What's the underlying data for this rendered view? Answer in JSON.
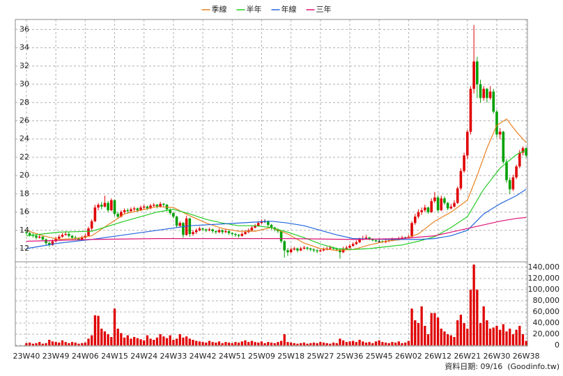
{
  "chart_data": {
    "type": "candlestick",
    "legend_position": "top",
    "grid": true,
    "xlim": [
      -3.4,
      153.4
    ],
    "xticks": [
      {
        "value": 0,
        "label": "23W40"
      },
      {
        "value": 9,
        "label": "23W49"
      },
      {
        "value": 18,
        "label": "24W06"
      },
      {
        "value": 27,
        "label": "24W15"
      },
      {
        "value": 36,
        "label": "24W24"
      },
      {
        "value": 45,
        "label": "24W33"
      },
      {
        "value": 54,
        "label": "24W42"
      },
      {
        "value": 63,
        "label": "24W51"
      },
      {
        "value": 72,
        "label": "25W09"
      },
      {
        "value": 81,
        "label": "25W18"
      },
      {
        "value": 90,
        "label": "25W27"
      },
      {
        "value": 99,
        "label": "25W36"
      },
      {
        "value": 108,
        "label": "25W45"
      },
      {
        "value": 117,
        "label": "26W02"
      },
      {
        "value": 126,
        "label": "26W12"
      },
      {
        "value": 135,
        "label": "26W21"
      },
      {
        "value": 144,
        "label": "26W30"
      },
      {
        "value": 153,
        "label": "26W38"
      }
    ],
    "ylim": [
      10.55,
      37.1
    ],
    "yticks": [
      12,
      14,
      16,
      18,
      20,
      22,
      24,
      26,
      28,
      30,
      32,
      34,
      36
    ],
    "up_color": "#e00000",
    "down_color": "#00a000",
    "flat_color": "#000000",
    "candles": [
      [
        13.8,
        14.0,
        13.5,
        13.7
      ],
      [
        13.7,
        13.8,
        13.3,
        13.5
      ],
      [
        13.5,
        13.7,
        13.2,
        13.4
      ],
      [
        13.4,
        13.5,
        13.0,
        13.2
      ],
      [
        13.2,
        13.5,
        13.1,
        13.3
      ],
      [
        13.3,
        13.4,
        12.8,
        13.0
      ],
      [
        13.0,
        13.1,
        12.4,
        12.6
      ],
      [
        12.6,
        12.8,
        12.2,
        12.4
      ],
      [
        12.4,
        13.0,
        12.3,
        12.8
      ],
      [
        12.8,
        13.3,
        12.7,
        13.1
      ],
      [
        13.1,
        13.5,
        13.0,
        13.3
      ],
      [
        13.3,
        13.7,
        13.2,
        13.5
      ],
      [
        13.5,
        13.9,
        13.4,
        13.6
      ],
      [
        13.6,
        13.8,
        13.2,
        13.4
      ],
      [
        13.4,
        13.5,
        13.0,
        13.2
      ],
      [
        13.2,
        13.4,
        12.9,
        13.1
      ],
      [
        13.1,
        13.2,
        12.8,
        13.0
      ],
      [
        13.0,
        13.4,
        12.9,
        13.2
      ],
      [
        13.2,
        13.6,
        13.1,
        13.4
      ],
      [
        13.4,
        14.4,
        13.3,
        14.2
      ],
      [
        14.2,
        15.2,
        14.0,
        15.0
      ],
      [
        15.0,
        16.8,
        14.9,
        16.5
      ],
      [
        16.5,
        17.0,
        16.2,
        16.8
      ],
      [
        16.8,
        17.1,
        16.3,
        16.6
      ],
      [
        16.6,
        17.8,
        16.5,
        17.0
      ],
      [
        17.0,
        17.2,
        16.0,
        16.2
      ],
      [
        16.2,
        17.5,
        16.1,
        17.3
      ],
      [
        17.3,
        17.4,
        15.6,
        15.8
      ],
      [
        15.8,
        16.0,
        15.3,
        15.5
      ],
      [
        15.5,
        16.2,
        15.4,
        16.0
      ],
      [
        16.0,
        16.4,
        15.8,
        16.2
      ],
      [
        16.2,
        16.4,
        15.9,
        16.1
      ],
      [
        16.1,
        16.5,
        16.0,
        16.3
      ],
      [
        16.3,
        16.6,
        16.1,
        16.4
      ],
      [
        16.4,
        16.5,
        16.0,
        16.2
      ],
      [
        16.2,
        16.7,
        16.1,
        16.5
      ],
      [
        16.5,
        16.8,
        16.3,
        16.6
      ],
      [
        16.6,
        16.7,
        16.2,
        16.4
      ],
      [
        16.4,
        16.9,
        16.3,
        16.7
      ],
      [
        16.7,
        17.0,
        16.5,
        16.8
      ],
      [
        16.8,
        16.9,
        16.4,
        16.6
      ],
      [
        16.6,
        17.1,
        16.5,
        16.9
      ],
      [
        16.9,
        17.0,
        16.6,
        16.8
      ],
      [
        16.8,
        16.9,
        16.1,
        16.3
      ],
      [
        16.3,
        16.4,
        15.7,
        15.9
      ],
      [
        15.9,
        16.0,
        15.3,
        15.5
      ],
      [
        15.5,
        15.6,
        14.3,
        14.5
      ],
      [
        14.5,
        15.0,
        14.3,
        14.8
      ],
      [
        14.8,
        14.9,
        13.2,
        13.5
      ],
      [
        13.5,
        15.6,
        13.4,
        15.3
      ],
      [
        15.3,
        15.4,
        13.3,
        13.6
      ],
      [
        13.6,
        14.0,
        13.4,
        13.8
      ],
      [
        13.8,
        14.2,
        13.6,
        14.0
      ],
      [
        14.0,
        14.4,
        13.9,
        14.2
      ],
      [
        14.2,
        14.3,
        13.9,
        14.1
      ],
      [
        14.1,
        14.2,
        13.8,
        14.0
      ],
      [
        14.0,
        14.3,
        13.9,
        14.1
      ],
      [
        14.1,
        14.2,
        13.7,
        13.9
      ],
      [
        13.9,
        14.0,
        13.6,
        13.8
      ],
      [
        13.8,
        14.2,
        13.7,
        14.0
      ],
      [
        14.0,
        14.1,
        13.6,
        13.8
      ],
      [
        13.8,
        14.1,
        13.7,
        13.9
      ],
      [
        13.9,
        14.0,
        13.5,
        13.7
      ],
      [
        13.7,
        13.8,
        13.4,
        13.6
      ],
      [
        13.6,
        13.7,
        13.3,
        13.5
      ],
      [
        13.5,
        13.6,
        13.2,
        13.4
      ],
      [
        13.4,
        13.8,
        13.3,
        13.6
      ],
      [
        13.6,
        14.0,
        13.5,
        13.8
      ],
      [
        13.8,
        14.2,
        13.7,
        14.0
      ],
      [
        14.0,
        14.5,
        13.9,
        14.3
      ],
      [
        14.3,
        14.7,
        14.2,
        14.5
      ],
      [
        14.5,
        15.0,
        14.4,
        14.8
      ],
      [
        14.8,
        15.2,
        14.7,
        15.0
      ],
      [
        15.0,
        15.2,
        14.8,
        15.0
      ],
      [
        15.0,
        15.1,
        14.4,
        14.6
      ],
      [
        14.6,
        14.7,
        14.1,
        14.3
      ],
      [
        14.3,
        14.4,
        13.9,
        14.1
      ],
      [
        14.1,
        14.2,
        13.7,
        13.9
      ],
      [
        13.9,
        14.0,
        12.6,
        12.8
      ],
      [
        12.8,
        12.9,
        11.0,
        11.8
      ],
      [
        11.8,
        12.0,
        11.2,
        11.6
      ],
      [
        11.6,
        12.1,
        11.5,
        11.9
      ],
      [
        11.9,
        12.2,
        11.8,
        12.0
      ],
      [
        12.0,
        12.1,
        11.6,
        11.8
      ],
      [
        11.8,
        12.2,
        11.7,
        12.0
      ],
      [
        12.0,
        12.3,
        11.9,
        12.1
      ],
      [
        12.1,
        12.2,
        11.8,
        12.0
      ],
      [
        12.0,
        12.1,
        11.7,
        11.9
      ],
      [
        11.9,
        12.0,
        11.6,
        11.8
      ],
      [
        11.8,
        11.9,
        11.5,
        11.7
      ],
      [
        11.7,
        12.0,
        11.6,
        11.8
      ],
      [
        11.8,
        12.1,
        11.7,
        11.9
      ],
      [
        11.9,
        12.2,
        11.8,
        12.0
      ],
      [
        12.0,
        12.3,
        11.9,
        12.1
      ],
      [
        12.1,
        12.2,
        11.8,
        12.0
      ],
      [
        12.0,
        12.1,
        11.7,
        11.9
      ],
      [
        11.9,
        12.0,
        10.9,
        11.6
      ],
      [
        11.6,
        12.2,
        11.5,
        12.0
      ],
      [
        12.0,
        12.3,
        11.9,
        12.1
      ],
      [
        12.1,
        12.5,
        12.0,
        12.3
      ],
      [
        12.3,
        12.7,
        12.2,
        12.5
      ],
      [
        12.5,
        12.9,
        12.4,
        12.7
      ],
      [
        12.7,
        13.2,
        12.6,
        13.0
      ],
      [
        13.0,
        13.4,
        12.9,
        13.1
      ],
      [
        13.1,
        13.5,
        13.0,
        13.2
      ],
      [
        13.2,
        13.3,
        12.9,
        13.0
      ],
      [
        13.0,
        13.1,
        12.8,
        12.9
      ],
      [
        12.9,
        13.0,
        12.7,
        12.8
      ],
      [
        12.8,
        13.0,
        12.7,
        12.8
      ],
      [
        12.8,
        12.9,
        12.6,
        12.7
      ],
      [
        12.7,
        13.0,
        12.6,
        12.8
      ],
      [
        12.8,
        13.1,
        12.7,
        12.9
      ],
      [
        12.9,
        13.2,
        12.8,
        13.0
      ],
      [
        13.0,
        13.1,
        12.9,
        13.0
      ],
      [
        13.0,
        13.3,
        12.9,
        13.1
      ],
      [
        13.1,
        13.4,
        13.0,
        13.2
      ],
      [
        13.2,
        13.3,
        13.1,
        13.2
      ],
      [
        13.2,
        13.5,
        13.1,
        13.3
      ],
      [
        13.3,
        15.0,
        13.2,
        14.8
      ],
      [
        14.8,
        15.8,
        14.6,
        15.5
      ],
      [
        15.5,
        16.3,
        15.3,
        16.0
      ],
      [
        16.0,
        16.5,
        15.7,
        16.2
      ],
      [
        16.2,
        16.8,
        16.0,
        16.5
      ],
      [
        16.5,
        16.6,
        15.8,
        16.0
      ],
      [
        16.0,
        17.5,
        15.9,
        17.2
      ],
      [
        17.2,
        18.2,
        17.0,
        17.6
      ],
      [
        17.6,
        17.8,
        16.0,
        16.2
      ],
      [
        16.2,
        17.8,
        16.1,
        17.5
      ],
      [
        17.5,
        17.7,
        16.8,
        17.0
      ],
      [
        17.0,
        17.1,
        16.2,
        16.4
      ],
      [
        16.4,
        16.9,
        16.3,
        16.6
      ],
      [
        16.6,
        17.3,
        16.5,
        17.0
      ],
      [
        17.0,
        18.8,
        16.9,
        18.6
      ],
      [
        18.6,
        20.8,
        18.4,
        20.5
      ],
      [
        20.5,
        22.5,
        20.3,
        22.2
      ],
      [
        22.2,
        25.0,
        21.8,
        24.8
      ],
      [
        24.8,
        29.8,
        24.5,
        29.5
      ],
      [
        29.5,
        36.5,
        29.0,
        32.5
      ],
      [
        32.5,
        33.0,
        28.5,
        30.0
      ],
      [
        30.0,
        30.5,
        28.0,
        28.5
      ],
      [
        28.5,
        29.8,
        28.2,
        29.5
      ],
      [
        29.5,
        29.6,
        28.0,
        28.5
      ],
      [
        28.5,
        29.8,
        28.3,
        29.2
      ],
      [
        29.2,
        29.5,
        26.8,
        27.0
      ],
      [
        27.0,
        27.2,
        24.2,
        24.5
      ],
      [
        24.5,
        25.2,
        24.0,
        24.8
      ],
      [
        24.8,
        24.9,
        21.3,
        21.5
      ],
      [
        21.5,
        21.8,
        19.2,
        19.5
      ],
      [
        19.5,
        19.8,
        18.0,
        18.5
      ],
      [
        18.5,
        20.1,
        18.3,
        19.8
      ],
      [
        19.8,
        21.2,
        19.6,
        21.0
      ],
      [
        21.0,
        22.8,
        20.8,
        22.5
      ],
      [
        22.5,
        23.2,
        22.2,
        23.0
      ],
      [
        23.0,
        23.1,
        22.0,
        22.2
      ]
    ],
    "series": [
      {
        "name": "季線",
        "color": "#e8801e",
        "x": [
          0,
          5,
          10,
          15,
          20,
          25,
          30,
          35,
          40,
          45,
          50,
          55,
          60,
          65,
          70,
          75,
          80,
          85,
          90,
          95,
          100,
          105,
          110,
          115,
          120,
          125,
          130,
          135,
          138,
          141,
          144,
          147,
          150,
          153
        ],
        "values": [
          14.0,
          13.4,
          13.0,
          13.1,
          13.4,
          14.6,
          15.8,
          16.2,
          16.6,
          16.5,
          15.6,
          14.8,
          14.2,
          13.9,
          13.9,
          14.3,
          13.6,
          12.6,
          12.0,
          11.8,
          11.9,
          12.4,
          12.8,
          13.0,
          13.6,
          15.0,
          16.0,
          17.3,
          20.0,
          23.0,
          25.5,
          26.2,
          24.8,
          23.6
        ]
      },
      {
        "name": "半年",
        "color": "#22cc22",
        "x": [
          0,
          10,
          20,
          30,
          40,
          45,
          50,
          55,
          60,
          65,
          70,
          75,
          80,
          85,
          90,
          95,
          100,
          105,
          110,
          115,
          120,
          125,
          130,
          135,
          140,
          145,
          150,
          153
        ],
        "values": [
          13.4,
          13.8,
          13.9,
          15.0,
          16.0,
          16.3,
          15.8,
          15.2,
          14.8,
          14.5,
          14.5,
          14.3,
          13.8,
          13.2,
          12.5,
          12.0,
          11.9,
          12.0,
          12.2,
          12.4,
          12.8,
          13.3,
          14.3,
          15.5,
          18.5,
          20.8,
          22.3,
          22.8
        ]
      },
      {
        "name": "年線",
        "color": "#2266dd",
        "x": [
          0,
          10,
          20,
          30,
          40,
          50,
          60,
          70,
          75,
          80,
          85,
          90,
          95,
          100,
          110,
          120,
          125,
          130,
          135,
          140,
          145,
          150,
          153
        ],
        "values": [
          12.0,
          12.6,
          13.0,
          13.5,
          14.0,
          14.5,
          14.7,
          14.9,
          15.0,
          14.8,
          14.5,
          14.0,
          13.5,
          13.1,
          13.0,
          13.0,
          13.1,
          13.4,
          14.0,
          15.8,
          16.9,
          17.8,
          18.5
        ]
      },
      {
        "name": "三年",
        "color": "#dd1177",
        "x": [
          0,
          20,
          40,
          60,
          80,
          100,
          115,
          125,
          130,
          135,
          140,
          145,
          150,
          153
        ],
        "values": [
          12.8,
          13.0,
          13.1,
          13.1,
          13.1,
          13.0,
          13.1,
          13.4,
          13.8,
          14.2,
          14.6,
          15.0,
          15.3,
          15.4
        ]
      }
    ],
    "volume": {
      "color": "#e00000",
      "ylim": [
        0,
        150000
      ],
      "yticks": [
        0,
        {
          "value": 20000,
          "label": "20,000"
        },
        {
          "value": 40000,
          "label": "40,000"
        },
        {
          "value": 60000,
          "label": "60,000"
        },
        {
          "value": 80000,
          "label": "80,000"
        },
        {
          "value": 100000,
          "label": "100,000"
        },
        {
          "value": 120000,
          "label": "120,000"
        },
        {
          "value": 140000,
          "label": "140,000"
        }
      ],
      "values": [
        4000,
        5000,
        3000,
        4000,
        6000,
        3000,
        4000,
        10000,
        7000,
        6000,
        5000,
        9000,
        6000,
        4000,
        6000,
        5000,
        3000,
        4000,
        5000,
        12000,
        18000,
        54000,
        53000,
        30000,
        25000,
        20000,
        15000,
        66000,
        30000,
        22000,
        14000,
        18000,
        12000,
        15000,
        13000,
        11000,
        9000,
        18000,
        12000,
        10000,
        14000,
        20000,
        16000,
        13000,
        18000,
        10000,
        12000,
        20000,
        14000,
        16000,
        12000,
        10000,
        8000,
        7000,
        6000,
        5000,
        8000,
        6000,
        5000,
        7000,
        4000,
        6000,
        5000,
        4000,
        6000,
        5000,
        7000,
        9000,
        6000,
        8000,
        6000,
        5000,
        7000,
        4000,
        6000,
        5000,
        4000,
        6000,
        8000,
        20000,
        6000,
        5000,
        4000,
        3000,
        4000,
        5000,
        3000,
        4000,
        5000,
        4000,
        6000,
        5000,
        4000,
        3000,
        5000,
        4000,
        12000,
        9000,
        6000,
        7000,
        8000,
        6000,
        10000,
        7000,
        5000,
        6000,
        4000,
        7000,
        9000,
        6000,
        5000,
        4000,
        6000,
        5000,
        7000,
        4000,
        5000,
        8000,
        66000,
        45000,
        40000,
        70000,
        35000,
        20000,
        58000,
        58000,
        50000,
        30000,
        25000,
        20000,
        18000,
        15000,
        45000,
        55000,
        40000,
        30000,
        100000,
        145000,
        100000,
        40000,
        70000,
        45000,
        30000,
        32000,
        35000,
        28000,
        38000,
        25000,
        30000,
        20000,
        28000,
        35000,
        20000,
        8000
      ]
    },
    "footer": "資料日期: 09/16  (Goodinfo.tw)"
  }
}
